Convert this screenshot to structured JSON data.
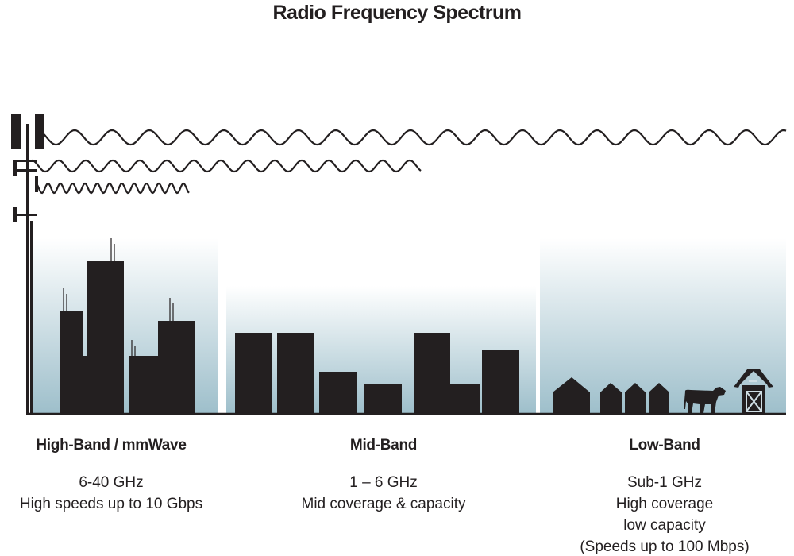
{
  "title": "Radio Frequency Spectrum",
  "colors": {
    "ink": "#231f20",
    "sky_top": "#ffffff",
    "sky_bottom": "#9ebfcb"
  },
  "bands": [
    {
      "name": "High-Band / mmWave",
      "lines": [
        "6-40 GHz",
        "High speeds up to 10 Gbps"
      ]
    },
    {
      "name": "Mid-Band",
      "lines": [
        "1 – 6 GHz",
        "Mid coverage & capacity"
      ]
    },
    {
      "name": "Low-Band",
      "lines": [
        "Sub-1 GHz",
        "High coverage",
        "low capacity",
        "(Speeds up to 100 Mbps)"
      ]
    }
  ],
  "icons": [
    "cell-tower-icon",
    "city-skyline-icon",
    "suburb-buildings-icon",
    "houses-icon",
    "cow-icon",
    "barn-icon"
  ]
}
